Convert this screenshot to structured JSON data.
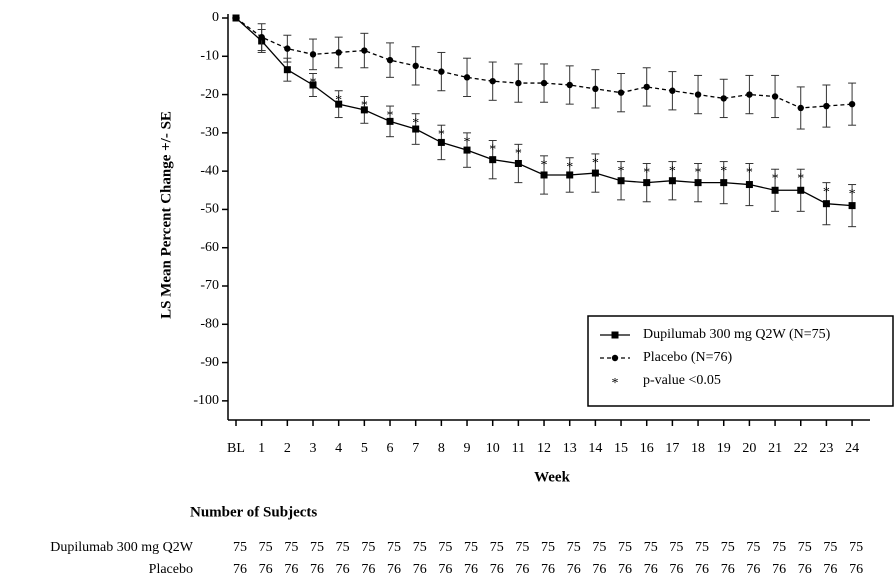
{
  "chart_data": {
    "type": "line",
    "y_label": "LS Mean Percent Change +/- SE",
    "x_label": "Week",
    "categories": [
      "BL",
      "1",
      "2",
      "3",
      "4",
      "5",
      "6",
      "7",
      "8",
      "9",
      "10",
      "11",
      "12",
      "13",
      "14",
      "15",
      "16",
      "17",
      "18",
      "19",
      "20",
      "21",
      "22",
      "23",
      "24"
    ],
    "series": [
      {
        "name": "Dupilumab 300 mg Q2W (N=75)",
        "color": "#000000",
        "marker": "square",
        "dash": false,
        "values": [
          0,
          -6,
          -13.5,
          -17.5,
          -22.5,
          -24,
          -27,
          -29,
          -32.5,
          -34.5,
          -37,
          -38,
          -41,
          -41,
          -40.5,
          -42.5,
          -43,
          -42.5,
          -43,
          -43,
          -43.5,
          -45,
          -45,
          -48.5,
          -49
        ],
        "errors": [
          0,
          3,
          3,
          3,
          3.5,
          3.5,
          4,
          4,
          4.5,
          4.5,
          5,
          5,
          5,
          4.5,
          5,
          5,
          5,
          5,
          5,
          5.5,
          5.5,
          5.5,
          5.5,
          5.5,
          5.5
        ],
        "significant": [
          false,
          false,
          false,
          true,
          true,
          true,
          true,
          true,
          true,
          true,
          true,
          true,
          true,
          true,
          true,
          true,
          true,
          true,
          true,
          true,
          true,
          true,
          true,
          true,
          true
        ]
      },
      {
        "name": "Placebo (N=76)",
        "color": "#000000",
        "marker": "circle",
        "dash": true,
        "values": [
          0,
          -5,
          -8,
          -9.5,
          -9,
          -8.5,
          -11,
          -12.5,
          -14,
          -15.5,
          -16.5,
          -17,
          -17,
          -17.5,
          -18.5,
          -19.5,
          -18,
          -19,
          -20,
          -21,
          -20,
          -20.5,
          -23.5,
          -23,
          -22.5
        ],
        "errors": [
          0,
          3.5,
          3.5,
          4,
          4,
          4.5,
          4.5,
          5,
          5,
          5,
          5,
          5,
          5,
          5,
          5,
          5,
          5,
          5,
          5,
          5,
          5,
          5.5,
          5.5,
          5.5,
          5.5
        ]
      }
    ],
    "significance": {
      "symbol": "*",
      "label": "p-value <0.05"
    },
    "ylim": [
      -105,
      0
    ],
    "yticks": [
      0,
      -10,
      -20,
      -30,
      -40,
      -50,
      -60,
      -70,
      -80,
      -90,
      -100
    ],
    "legend": "lower right",
    "subjects": {
      "title": "Number of Subjects",
      "rows": [
        {
          "label": "Dupilumab 300 mg Q2W",
          "counts": [
            75,
            75,
            75,
            75,
            75,
            75,
            75,
            75,
            75,
            75,
            75,
            75,
            75,
            75,
            75,
            75,
            75,
            75,
            75,
            75,
            75,
            75,
            75,
            75,
            75
          ]
        },
        {
          "label": "Placebo",
          "counts": [
            76,
            76,
            76,
            76,
            76,
            76,
            76,
            76,
            76,
            76,
            76,
            76,
            76,
            76,
            76,
            76,
            76,
            76,
            76,
            76,
            76,
            76,
            76,
            76,
            76
          ]
        }
      ]
    }
  }
}
